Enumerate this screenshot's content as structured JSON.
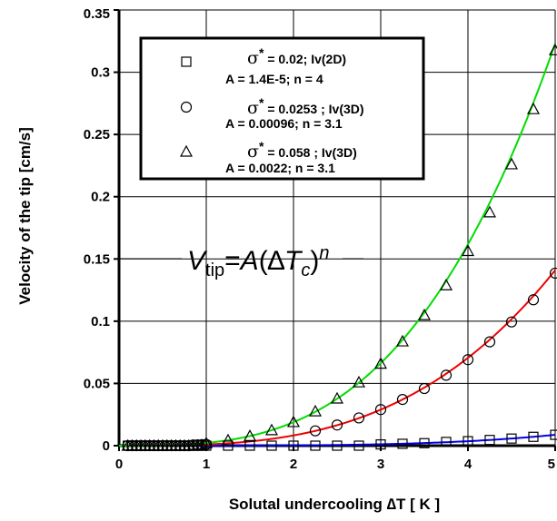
{
  "chart_data": {
    "type": "scatter",
    "xlabel": "Solutal undercooling ∆T [ K ]",
    "ylabel": "Velocity of the tip [cm/s]",
    "xlim": [
      0,
      5
    ],
    "ylim": [
      0,
      0.35
    ],
    "x_ticks": [
      "0",
      "1",
      "2",
      "3",
      "4",
      "5"
    ],
    "y_ticks": [
      "0",
      "0.05",
      "0.1",
      "0.15",
      "0.2",
      "0.25",
      "0.3",
      "0.35"
    ],
    "x_tick_values": [
      0,
      1,
      2,
      3,
      4,
      5
    ],
    "y_tick_values": [
      0,
      0.05,
      0.1,
      0.15,
      0.2,
      0.25,
      0.3,
      0.35
    ],
    "grid": true,
    "legend_position": "top-left",
    "equation": {
      "v": "V",
      "v_sub": "tip",
      "eq": "=",
      "a": "A",
      "open": "(",
      "delta": "∆",
      "t": "T",
      "t_sub": "c",
      "close": ")",
      "exp": "n"
    },
    "series": [
      {
        "marker": "square",
        "line_color": "#0000ee",
        "legend_sigma": "σ",
        "legend_star": "*",
        "legend_line1": "= 0.02; Iv(2D)",
        "legend_line2": "A = 1.4E-5;  n = 4",
        "A": 1.4e-05,
        "n": 4,
        "x": [
          0.1,
          0.15,
          0.2,
          0.25,
          0.3,
          0.35,
          0.4,
          0.45,
          0.5,
          0.55,
          0.6,
          0.65,
          0.7,
          0.75,
          0.8,
          0.85,
          0.9,
          0.95,
          1.0,
          1.25,
          1.5,
          1.75,
          2.0,
          2.25,
          2.5,
          2.75,
          3.0,
          3.25,
          3.5,
          3.75,
          4.0,
          4.25,
          4.5,
          4.75,
          5.0
        ],
        "y": [
          0,
          0,
          0,
          0,
          0,
          0,
          0,
          0,
          0,
          0,
          0,
          0,
          0,
          0,
          0,
          0,
          0,
          0,
          0,
          0,
          0,
          0,
          0,
          0,
          0,
          0,
          0.001,
          0.0015,
          0.002,
          0.003,
          0.0036,
          0.0046,
          0.0057,
          0.0071,
          0.0087
        ]
      },
      {
        "marker": "circle",
        "line_color": "#ee0000",
        "legend_sigma": "σ",
        "legend_star": "*",
        "legend_line1": "= 0.0253 ; Iv(3D)",
        "legend_line2": "A = 0.00096;  n = 3.1",
        "A": 0.00096,
        "n": 3.1,
        "x": [
          0.1,
          0.15,
          0.2,
          0.25,
          0.3,
          0.35,
          0.4,
          0.45,
          0.5,
          0.55,
          0.6,
          0.65,
          0.7,
          0.75,
          0.8,
          0.85,
          0.9,
          0.95,
          1.0,
          2.25,
          2.5,
          2.75,
          3.0,
          3.25,
          3.5,
          3.75,
          4.0,
          4.25,
          4.5,
          4.75,
          5.0
        ],
        "y": [
          0,
          0,
          0,
          0,
          0,
          0,
          0,
          0,
          0,
          0,
          0,
          0,
          0,
          0,
          0,
          0.0006,
          0.0007,
          0.0008,
          0.001,
          0.0119,
          0.0166,
          0.0223,
          0.029,
          0.0371,
          0.0459,
          0.0566,
          0.0691,
          0.0834,
          0.0994,
          0.1172,
          0.1386
        ]
      },
      {
        "marker": "triangle",
        "line_color": "#00dd00",
        "legend_sigma": "σ",
        "legend_star": "*",
        "legend_line1": "= 0.058 ; Iv(3D)",
        "legend_line2": "A = 0.0022;  n = 3.1",
        "A": 0.0022,
        "n": 3.1,
        "x": [
          0.1,
          0.15,
          0.2,
          0.25,
          0.3,
          0.35,
          0.4,
          0.45,
          0.5,
          0.55,
          0.6,
          0.65,
          0.7,
          0.75,
          0.8,
          0.85,
          0.9,
          0.95,
          1.0,
          1.25,
          1.5,
          1.75,
          2.0,
          2.25,
          2.5,
          2.75,
          3.0,
          3.25,
          3.5,
          3.75,
          4.0,
          4.25,
          4.5,
          4.75,
          5.0
        ],
        "y": [
          0,
          0,
          0,
          0,
          0,
          0,
          0,
          0,
          0,
          0,
          0,
          0,
          0,
          0,
          0,
          0,
          0,
          0,
          0.002,
          0.0044,
          0.0078,
          0.0125,
          0.019,
          0.0276,
          0.0379,
          0.0509,
          0.0659,
          0.0838,
          0.1049,
          0.1289,
          0.1564,
          0.1875,
          0.2261,
          0.2704,
          0.3177
        ]
      }
    ]
  }
}
